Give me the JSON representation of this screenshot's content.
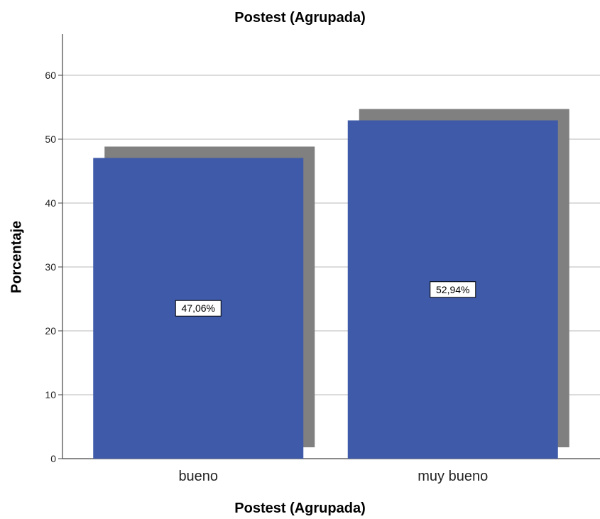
{
  "chart_data": {
    "type": "bar",
    "title": "Postest (Agrupada)",
    "xlabel": "Postest (Agrupada)",
    "ylabel": "Porcentaje",
    "categories": [
      "bueno",
      "muy bueno"
    ],
    "values": [
      47.06,
      52.94
    ],
    "value_labels": [
      "47,06%",
      "52,94%"
    ],
    "ylim": [
      0,
      65
    ],
    "yticks": [
      0,
      10,
      20,
      30,
      40,
      50,
      60
    ],
    "grid": true,
    "bar_color": "#3f5aa8",
    "shadow_color": "#808080"
  }
}
